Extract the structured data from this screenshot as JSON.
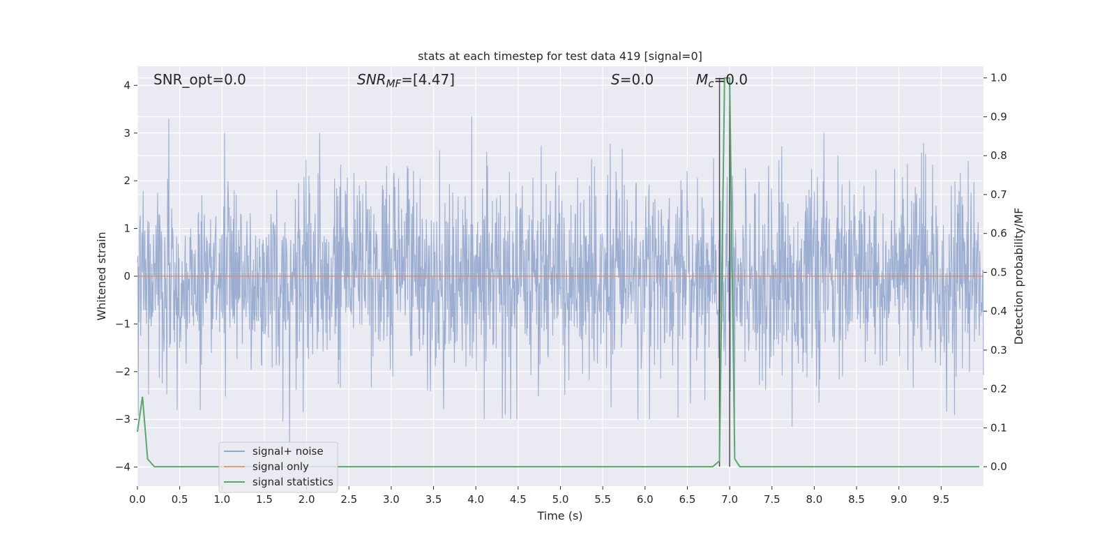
{
  "chart_data": {
    "type": "line",
    "title": "stats at each timestep for test data 419 [signal=0]",
    "xlabel": "Time (s)",
    "ylabel_left": "Whitened strain",
    "ylabel_right": "Detection probability/MF",
    "xlim": [
      0,
      10
    ],
    "ylim_left": [
      -4.4,
      4.4
    ],
    "ylim_right": [
      -0.05,
      1.03
    ],
    "x_ticks": [
      "0.0",
      "0.5",
      "1.0",
      "1.5",
      "2.0",
      "2.5",
      "3.0",
      "3.5",
      "4.0",
      "4.5",
      "5.0",
      "5.5",
      "6.0",
      "6.5",
      "7.0",
      "7.5",
      "8.0",
      "8.5",
      "9.0",
      "9.5"
    ],
    "y_ticks_left": [
      "−4",
      "−3",
      "−2",
      "−1",
      "0",
      "1",
      "2",
      "3",
      "4"
    ],
    "y_ticks_right": [
      "0.0",
      "0.1",
      "0.2",
      "0.3",
      "0.4",
      "0.5",
      "0.6",
      "0.7",
      "0.8",
      "0.9",
      "1.0"
    ],
    "grid": true,
    "legend_position": "lower-left",
    "annotations": {
      "snr_opt": "SNR_opt=0.0",
      "snr_mf_sym": "SNR",
      "snr_mf_sub": "MF",
      "snr_mf_val": "=[4.47]",
      "s_sym": "S",
      "s_val": "=0.0",
      "mc_sym": "M",
      "mc_sub": "c",
      "mc_val": "=0.0"
    },
    "vertical_lines": [
      6.88,
      7.0
    ],
    "series": [
      {
        "name": "signal+ noise",
        "color": "#4c72b0",
        "axis": "left",
        "noise_level": 1.0,
        "peaks": [
          {
            "x": 0.37,
            "y": 3.3
          },
          {
            "x": 3.95,
            "y": 3.35
          },
          {
            "x": 1.8,
            "y": -3.55
          },
          {
            "x": 7.74,
            "y": -3.15
          },
          {
            "x": 1.72,
            "y": -3.05
          },
          {
            "x": 3.5,
            "y": -0.55
          },
          {
            "x": 4.35,
            "y": -2.9
          },
          {
            "x": 0.47,
            "y": -2.8
          },
          {
            "x": 5.6,
            "y": -2.75
          }
        ]
      },
      {
        "name": "signal only",
        "color": "#dd8452",
        "axis": "left",
        "values": [
          0.0
        ]
      },
      {
        "name": "signal statistics",
        "color": "#55a868",
        "axis": "right",
        "x": [
          0.0,
          0.06,
          0.12,
          0.2,
          0.25,
          0.3,
          6.8,
          6.88,
          6.94,
          7.0,
          7.06,
          7.12,
          9.95
        ],
        "y": [
          0.09,
          0.18,
          0.02,
          0.0,
          0.0,
          0.0,
          0.0,
          0.015,
          1.0,
          1.0,
          0.02,
          0.0,
          0.0
        ]
      }
    ]
  }
}
